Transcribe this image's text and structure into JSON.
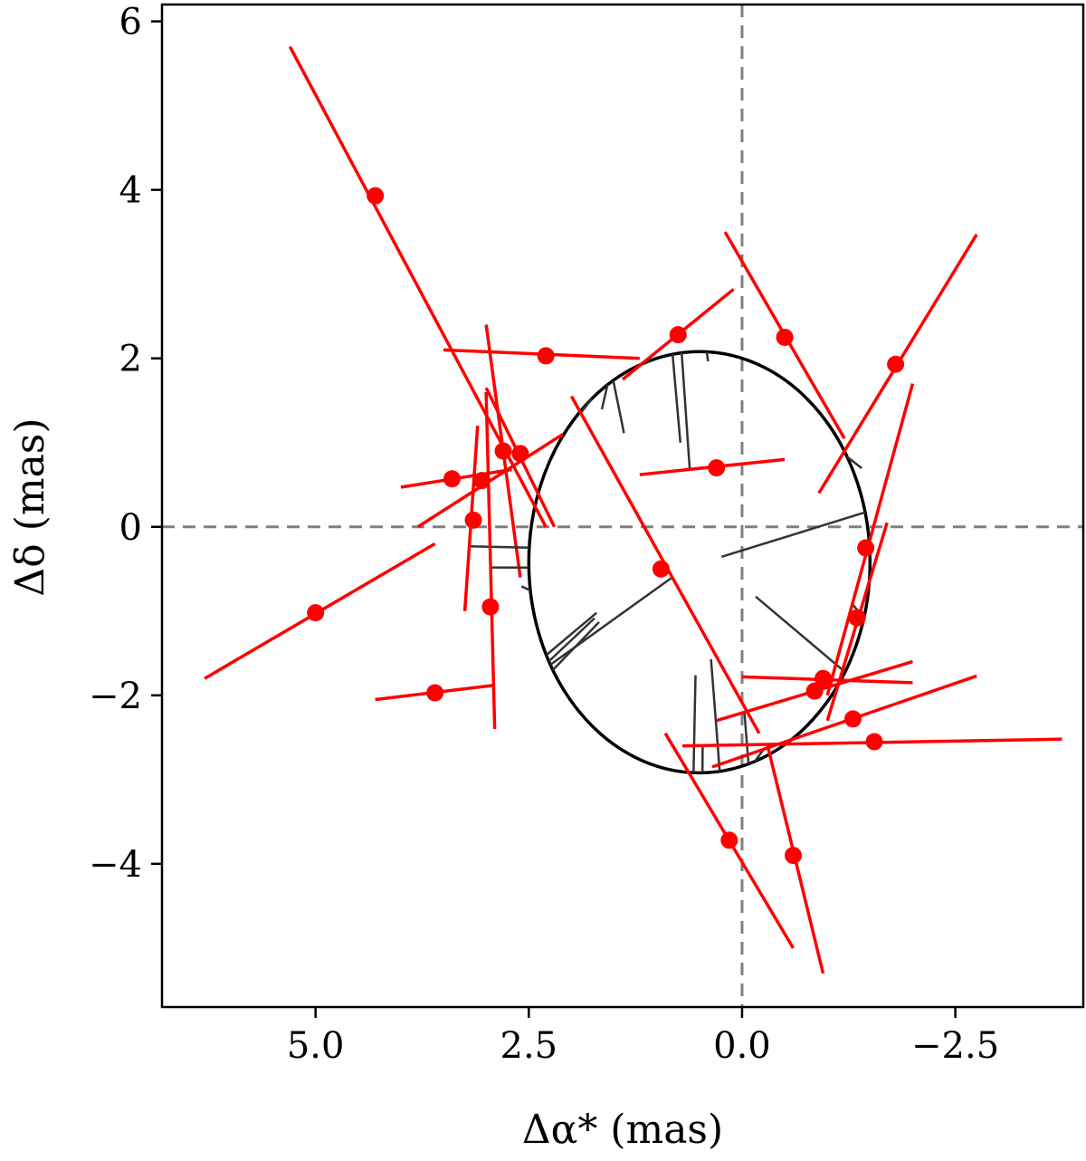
{
  "chart_data": {
    "type": "scatter",
    "xlabel": "Δα* (mas)",
    "ylabel": "Δδ (mas)",
    "xlim": [
      6.8,
      -4.0
    ],
    "ylim": [
      -5.7,
      6.2
    ],
    "x_inverted": true,
    "xticks": [
      5.0,
      2.5,
      0.0,
      -2.5
    ],
    "xtick_labels": [
      "5.0",
      "2.5",
      "0.0",
      "−2.5"
    ],
    "yticks": [
      6,
      4,
      2,
      0,
      -2,
      -4
    ],
    "ytick_labels": [
      "6",
      "4",
      "2",
      "0",
      "−2",
      "−4"
    ],
    "grid": false,
    "reference_lines": [
      {
        "orientation": "vertical",
        "x": 0,
        "style": "dashed",
        "color": "#808080"
      },
      {
        "orientation": "horizontal",
        "y": 0,
        "style": "dashed",
        "color": "#808080"
      }
    ],
    "orbit_ellipse": {
      "center": [
        0.5,
        -0.42
      ],
      "rx": 2.0,
      "ry": 2.5,
      "color": "#000000"
    },
    "colors": {
      "points": "#ff0000",
      "scan_lines": "#ff0000",
      "residuals": "#333333"
    },
    "points": [
      {
        "x": 4.3,
        "y": 3.93,
        "line": [
          [
            5.3,
            5.7
          ],
          [
            2.3,
            0.0
          ]
        ]
      },
      {
        "x": 2.3,
        "y": 2.03,
        "line": [
          [
            3.5,
            2.1
          ],
          [
            1.2,
            2.0
          ]
        ]
      },
      {
        "x": 0.75,
        "y": 2.28,
        "line": [
          [
            1.4,
            1.75
          ],
          [
            0.1,
            2.82
          ]
        ]
      },
      {
        "x": -0.5,
        "y": 2.25,
        "line": [
          [
            0.2,
            3.5
          ],
          [
            -1.2,
            1.05
          ]
        ]
      },
      {
        "x": -1.8,
        "y": 1.93,
        "line": [
          [
            -0.9,
            0.4
          ],
          [
            -2.75,
            3.47
          ]
        ]
      },
      {
        "x": 3.4,
        "y": 0.57,
        "line": [
          [
            4.0,
            0.47
          ],
          [
            2.7,
            0.68
          ]
        ]
      },
      {
        "x": 3.05,
        "y": 0.55,
        "line": [
          [
            3.8,
            0.0
          ],
          [
            2.1,
            1.1
          ]
        ]
      },
      {
        "x": 2.8,
        "y": 0.9,
        "line": [
          [
            3.0,
            2.4
          ],
          [
            2.6,
            -0.6
          ]
        ]
      },
      {
        "x": 2.6,
        "y": 0.87,
        "line": [
          [
            3.0,
            1.65
          ],
          [
            2.2,
            0.0
          ]
        ]
      },
      {
        "x": 0.3,
        "y": 0.7,
        "line": [
          [
            1.2,
            0.62
          ],
          [
            -0.5,
            0.8
          ]
        ]
      },
      {
        "x": 3.15,
        "y": 0.08,
        "line": [
          [
            3.1,
            1.2
          ],
          [
            3.25,
            -1.0
          ]
        ]
      },
      {
        "x": 2.95,
        "y": -0.95,
        "line": [
          [
            3.0,
            1.6
          ],
          [
            2.9,
            -2.4
          ]
        ]
      },
      {
        "x": 5.0,
        "y": -1.02,
        "line": [
          [
            6.3,
            -1.8
          ],
          [
            3.6,
            -0.2
          ]
        ]
      },
      {
        "x": 0.95,
        "y": -0.5,
        "line": [
          [
            2.0,
            1.55
          ],
          [
            -0.2,
            -2.45
          ]
        ]
      },
      {
        "x": -1.45,
        "y": -0.25,
        "line": [
          [
            -1.0,
            -2.3
          ],
          [
            -1.7,
            0.05
          ]
        ]
      },
      {
        "x": -1.35,
        "y": -1.08,
        "line": [
          [
            -1.0,
            -2.0
          ],
          [
            -2.0,
            1.7
          ]
        ]
      },
      {
        "x": 3.6,
        "y": -1.97,
        "line": [
          [
            4.3,
            -2.05
          ],
          [
            2.9,
            -1.88
          ]
        ]
      },
      {
        "x": -0.85,
        "y": -1.95,
        "line": [
          [
            0.3,
            -2.3
          ],
          [
            -2.0,
            -1.6
          ]
        ]
      },
      {
        "x": -0.95,
        "y": -1.8,
        "line": [
          [
            0.0,
            -1.78
          ],
          [
            -2.0,
            -1.85
          ]
        ]
      },
      {
        "x": -1.3,
        "y": -2.28,
        "line": [
          [
            0.35,
            -2.85
          ],
          [
            -2.75,
            -1.77
          ]
        ]
      },
      {
        "x": -1.55,
        "y": -2.55,
        "line": [
          [
            0.7,
            -2.6
          ],
          [
            -3.75,
            -2.52
          ]
        ]
      },
      {
        "x": 0.15,
        "y": -3.72,
        "line": [
          [
            0.9,
            -2.45
          ],
          [
            -0.6,
            -5.0
          ]
        ]
      },
      {
        "x": -0.6,
        "y": -3.9,
        "line": [
          [
            -0.3,
            -2.6
          ],
          [
            -0.95,
            -5.3
          ]
        ]
      }
    ]
  }
}
